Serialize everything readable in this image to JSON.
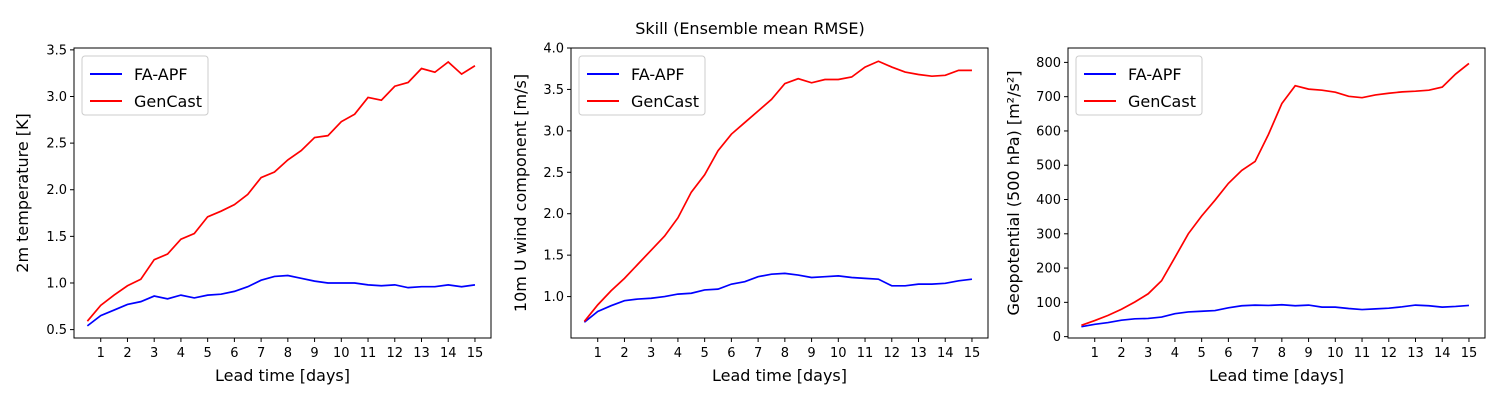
{
  "figure": {
    "suptitle": "Skill (Ensemble mean RMSE)"
  },
  "colors": {
    "FA-APF": "#0000ff",
    "GenCast": "#ff0000"
  },
  "chart_data": [
    {
      "type": "line",
      "xlabel": "Lead time [days]",
      "ylabel": "2m temperature [K]",
      "xticks": [
        1,
        2,
        3,
        4,
        5,
        6,
        7,
        8,
        9,
        10,
        11,
        12,
        13,
        14,
        15
      ],
      "xlim": [
        0.0,
        15.6
      ],
      "ylim": [
        0.41,
        3.52
      ],
      "yticks": [
        0.5,
        1.0,
        1.5,
        2.0,
        2.5,
        3.0,
        3.5
      ],
      "ytick_labels": [
        "0.5",
        "1.0",
        "1.5",
        "2.0",
        "2.5",
        "3.0",
        "3.5"
      ],
      "legend": "top-left",
      "x": [
        0.5,
        1,
        1.5,
        2,
        2.5,
        3,
        3.5,
        4,
        4.5,
        5,
        5.5,
        6,
        6.5,
        7,
        7.5,
        8,
        8.5,
        9,
        9.5,
        10,
        10.5,
        11,
        11.5,
        12,
        12.5,
        13,
        13.5,
        14,
        14.5,
        15
      ],
      "series": [
        {
          "name": "FA-APF",
          "values": [
            0.54,
            0.65,
            0.71,
            0.77,
            0.8,
            0.86,
            0.83,
            0.87,
            0.84,
            0.87,
            0.88,
            0.91,
            0.96,
            1.03,
            1.07,
            1.08,
            1.05,
            1.02,
            1.0,
            1.0,
            1.0,
            0.98,
            0.97,
            0.98,
            0.95,
            0.96,
            0.96,
            0.98,
            0.96,
            0.98
          ]
        },
        {
          "name": "GenCast",
          "values": [
            0.59,
            0.76,
            0.87,
            0.97,
            1.04,
            1.25,
            1.31,
            1.47,
            1.53,
            1.71,
            1.77,
            1.84,
            1.95,
            2.13,
            2.19,
            2.32,
            2.42,
            2.56,
            2.58,
            2.73,
            2.81,
            2.99,
            2.96,
            3.11,
            3.15,
            3.3,
            3.26,
            3.37,
            3.24,
            3.33
          ]
        }
      ]
    },
    {
      "type": "line",
      "xlabel": "Lead time [days]",
      "ylabel": "10m U wind component [m/s]",
      "xticks": [
        1,
        2,
        3,
        4,
        5,
        6,
        7,
        8,
        9,
        10,
        11,
        12,
        13,
        14,
        15
      ],
      "xlim": [
        0.0,
        15.6
      ],
      "ylim": [
        0.5,
        4.0
      ],
      "yticks": [
        1.0,
        1.5,
        2.0,
        2.5,
        3.0,
        3.5,
        4.0
      ],
      "ytick_labels": [
        "1.0",
        "1.5",
        "2.0",
        "2.5",
        "3.0",
        "3.5",
        "4.0"
      ],
      "legend": "top-left",
      "x": [
        0.5,
        1,
        1.5,
        2,
        2.5,
        3,
        3.5,
        4,
        4.5,
        5,
        5.5,
        6,
        6.5,
        7,
        7.5,
        8,
        8.5,
        9,
        9.5,
        10,
        10.5,
        11,
        11.5,
        12,
        12.5,
        13,
        13.5,
        14,
        14.5,
        15
      ],
      "series": [
        {
          "name": "FA-APF",
          "values": [
            0.69,
            0.82,
            0.89,
            0.95,
            0.97,
            0.98,
            1.0,
            1.03,
            1.04,
            1.08,
            1.09,
            1.15,
            1.18,
            1.24,
            1.27,
            1.28,
            1.26,
            1.23,
            1.24,
            1.25,
            1.23,
            1.22,
            1.21,
            1.13,
            1.13,
            1.15,
            1.15,
            1.16,
            1.19,
            1.21
          ]
        },
        {
          "name": "GenCast",
          "values": [
            0.7,
            0.9,
            1.07,
            1.22,
            1.39,
            1.56,
            1.73,
            1.95,
            2.26,
            2.47,
            2.76,
            2.96,
            3.1,
            3.24,
            3.38,
            3.57,
            3.63,
            3.58,
            3.62,
            3.62,
            3.65,
            3.77,
            3.84,
            3.77,
            3.71,
            3.68,
            3.66,
            3.67,
            3.73,
            3.73
          ]
        }
      ]
    },
    {
      "type": "line",
      "xlabel": "Lead time [days]",
      "ylabel": "Geopotential (500 hPa) [m²/s²]",
      "xticks": [
        1,
        2,
        3,
        4,
        5,
        6,
        7,
        8,
        9,
        10,
        11,
        12,
        13,
        14,
        15
      ],
      "xlim": [
        0.0,
        15.6
      ],
      "ylim": [
        -4,
        842
      ],
      "yticks": [
        0,
        100,
        200,
        300,
        400,
        500,
        600,
        700,
        800
      ],
      "ytick_labels": [
        "0",
        "100",
        "200",
        "300",
        "400",
        "500",
        "600",
        "700",
        "800"
      ],
      "legend": "top-left",
      "x": [
        0.5,
        1,
        1.5,
        2,
        2.5,
        3,
        3.5,
        4,
        4.5,
        5,
        5.5,
        6,
        6.5,
        7,
        7.5,
        8,
        8.5,
        9,
        9.5,
        10,
        10.5,
        11,
        11.5,
        12,
        12.5,
        13,
        13.5,
        14,
        14.5,
        15
      ],
      "series": [
        {
          "name": "FA-APF",
          "values": [
            29,
            36,
            41,
            48,
            52,
            53,
            57,
            67,
            72,
            74,
            76,
            84,
            90,
            92,
            91,
            93,
            90,
            92,
            86,
            86,
            82,
            79,
            81,
            83,
            87,
            92,
            90,
            86,
            88,
            91
          ]
        },
        {
          "name": "GenCast",
          "values": [
            33,
            47,
            62,
            80,
            101,
            125,
            163,
            231,
            300,
            352,
            398,
            447,
            485,
            511,
            590,
            680,
            732,
            722,
            719,
            713,
            701,
            697,
            705,
            710,
            714,
            716,
            719,
            728,
            766,
            797
          ]
        }
      ]
    }
  ]
}
